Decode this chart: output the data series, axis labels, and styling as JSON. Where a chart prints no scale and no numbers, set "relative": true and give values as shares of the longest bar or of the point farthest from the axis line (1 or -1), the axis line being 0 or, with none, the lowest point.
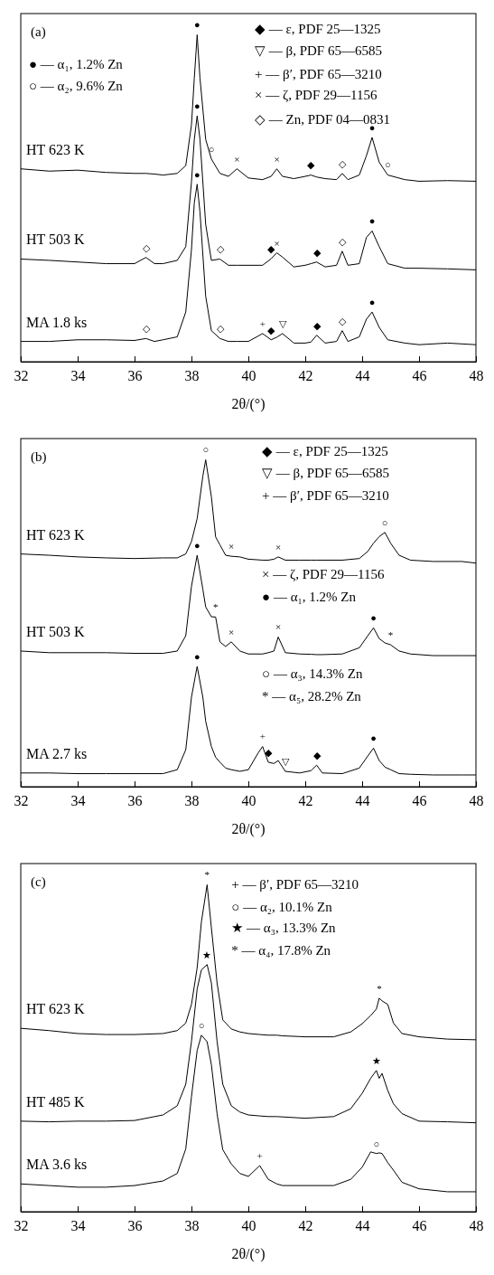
{
  "chart_data": [
    {
      "type": "line",
      "title": "(a)",
      "xlabel": "2θ/(°)",
      "relative": true,
      "xlim": [
        32,
        48
      ],
      "xticks": [
        32,
        34,
        36,
        38,
        40,
        42,
        44,
        46,
        48
      ],
      "x": [
        32,
        33,
        34,
        35,
        36,
        36.4,
        36.7,
        37,
        37.5,
        37.8,
        38,
        38.1,
        38.2,
        38.3,
        38.5,
        38.7,
        39,
        39.3,
        39.6,
        40,
        40.5,
        40.8,
        41,
        41.2,
        41.6,
        42,
        42.2,
        42.4,
        42.7,
        43.1,
        43.3,
        43.5,
        43.9,
        44.15,
        44.35,
        44.6,
        44.9,
        45.5,
        46,
        47,
        48
      ],
      "series": [
        {
          "name": "HT 623 K",
          "color": "#000000",
          "values": [
            0.59,
            0.583,
            0.586,
            0.579,
            0.576,
            0.576,
            0.574,
            0.571,
            0.576,
            0.6,
            0.724,
            0.867,
            1.0,
            0.867,
            0.68,
            0.62,
            0.576,
            0.567,
            0.59,
            0.562,
            0.557,
            0.567,
            0.59,
            0.567,
            0.56,
            0.567,
            0.571,
            0.565,
            0.56,
            0.557,
            0.576,
            0.557,
            0.571,
            0.63,
            0.686,
            0.61,
            0.571,
            0.557,
            0.552,
            0.554,
            0.552
          ]
        },
        {
          "name": "HT 503 K",
          "color": "#000000",
          "values": [
            0.314,
            0.31,
            0.305,
            0.3,
            0.3,
            0.319,
            0.3,
            0.3,
            0.31,
            0.352,
            0.55,
            0.68,
            0.752,
            0.68,
            0.42,
            0.31,
            0.314,
            0.295,
            0.295,
            0.295,
            0.295,
            0.315,
            0.333,
            0.32,
            0.29,
            0.295,
            0.3,
            0.305,
            0.29,
            0.295,
            0.338,
            0.295,
            0.3,
            0.38,
            0.4,
            0.352,
            0.3,
            0.286,
            0.286,
            0.284,
            0.281
          ]
        },
        {
          "name": "MA 1.8 ks",
          "color": "#000000",
          "values": [
            0.062,
            0.062,
            0.067,
            0.067,
            0.065,
            0.071,
            0.062,
            0.067,
            0.076,
            0.152,
            0.343,
            0.486,
            0.543,
            0.457,
            0.2,
            0.095,
            0.071,
            0.062,
            0.062,
            0.062,
            0.086,
            0.067,
            0.075,
            0.086,
            0.057,
            0.057,
            0.06,
            0.081,
            0.057,
            0.062,
            0.095,
            0.062,
            0.076,
            0.13,
            0.152,
            0.105,
            0.067,
            0.057,
            0.052,
            0.057,
            0.052
          ]
        }
      ],
      "annotations": [
        "● — α₁, 1.2% Zn",
        "○ — α₂, 9.6% Zn",
        "◆ — ε, PDF 25—1325",
        "▽ — β, PDF 65—6585",
        "+ — β′, PDF 65—3210",
        "× — ζ, PDF 29—1156",
        "◇ — Zn, PDF 04—0831",
        {
          "text": "●",
          "x": 38.2,
          "y": 1.0
        },
        {
          "text": "○",
          "x": 38.7,
          "y": 0.62
        },
        {
          "text": "×",
          "x": 39.6,
          "y": 0.59
        },
        {
          "text": "×",
          "x": 41,
          "y": 0.59
        },
        {
          "text": "◆",
          "x": 42.2,
          "y": 0.571
        },
        {
          "text": "◇",
          "x": 43.3,
          "y": 0.576
        },
        {
          "text": "●",
          "x": 44.35,
          "y": 0.686
        },
        {
          "text": "○",
          "x": 44.9,
          "y": 0.571
        },
        {
          "text": "◇",
          "x": 36.4,
          "y": 0.319
        },
        {
          "text": "●",
          "x": 38.2,
          "y": 0.752
        },
        {
          "text": "◇",
          "x": 39,
          "y": 0.314
        },
        {
          "text": "◆",
          "x": 40.8,
          "y": 0.315
        },
        {
          "text": "×",
          "x": 41,
          "y": 0.333
        },
        {
          "text": "◆",
          "x": 42.4,
          "y": 0.305
        },
        {
          "text": "◇",
          "x": 43.3,
          "y": 0.338
        },
        {
          "text": "●",
          "x": 44.35,
          "y": 0.4
        },
        {
          "text": "●",
          "x": 38.2,
          "y": 0.543
        },
        {
          "text": "◇",
          "x": 36.4,
          "y": 0.071
        },
        {
          "text": "◇",
          "x": 39,
          "y": 0.071
        },
        {
          "text": "+",
          "x": 40.5,
          "y": 0.086
        },
        {
          "text": "◆",
          "x": 40.8,
          "y": 0.067
        },
        {
          "text": "▽",
          "x": 41.2,
          "y": 0.086
        },
        {
          "text": "◆",
          "x": 42.4,
          "y": 0.081
        },
        {
          "text": "◇",
          "x": 43.3,
          "y": 0.095
        },
        {
          "text": "●",
          "x": 44.35,
          "y": 0.152
        }
      ]
    },
    {
      "type": "line",
      "title": "(b)",
      "xlabel": "2θ/(°)",
      "relative": true,
      "xlim": [
        32,
        48
      ],
      "xticks": [
        32,
        34,
        36,
        38,
        40,
        42,
        44,
        46,
        48
      ],
      "x": [
        32,
        33,
        34,
        35,
        36,
        37,
        37.5,
        37.8,
        38,
        38.2,
        38.4,
        38.5,
        38.7,
        38.85,
        39,
        39.2,
        39.4,
        39.7,
        40,
        40.35,
        40.5,
        40.7,
        40.9,
        41.05,
        41.3,
        41.8,
        42.2,
        42.4,
        42.6,
        43.3,
        43.9,
        44.2,
        44.4,
        44.6,
        44.8,
        45,
        45.3,
        45.7,
        46.5,
        47.5,
        48
      ],
      "series": [
        {
          "name": "HT 623 K",
          "color": "#000000",
          "values": [
            0.712,
            0.708,
            0.703,
            0.7,
            0.698,
            0.7,
            0.7,
            0.712,
            0.75,
            0.82,
            0.95,
            1.0,
            0.887,
            0.764,
            0.74,
            0.708,
            0.705,
            0.703,
            0.696,
            0.694,
            0.693,
            0.693,
            0.696,
            0.703,
            0.693,
            0.693,
            0.693,
            0.693,
            0.693,
            0.693,
            0.698,
            0.72,
            0.745,
            0.765,
            0.778,
            0.745,
            0.708,
            0.693,
            0.689,
            0.689,
            0.684
          ]
        },
        {
          "name": "HT 503 K",
          "color": "#000000",
          "values": [
            0.415,
            0.41,
            0.41,
            0.41,
            0.408,
            0.408,
            0.415,
            0.462,
            0.613,
            0.708,
            0.604,
            0.55,
            0.52,
            0.519,
            0.443,
            0.429,
            0.443,
            0.415,
            0.406,
            0.406,
            0.406,
            0.41,
            0.415,
            0.458,
            0.41,
            0.406,
            0.405,
            0.404,
            0.404,
            0.406,
            0.425,
            0.462,
            0.486,
            0.453,
            0.44,
            0.434,
            0.415,
            0.406,
            0.401,
            0.401,
            0.401
          ]
        },
        {
          "name": "MA 2.7 ks",
          "color": "#000000",
          "values": [
            0.042,
            0.042,
            0.04,
            0.04,
            0.04,
            0.04,
            0.052,
            0.113,
            0.274,
            0.368,
            0.274,
            0.2,
            0.123,
            0.09,
            0.075,
            0.057,
            0.052,
            0.047,
            0.052,
            0.104,
            0.123,
            0.075,
            0.071,
            0.08,
            0.047,
            0.042,
            0.049,
            0.066,
            0.042,
            0.04,
            0.057,
            0.094,
            0.118,
            0.08,
            0.06,
            0.052,
            0.04,
            0.038,
            0.036,
            0.036,
            0.036
          ]
        }
      ],
      "annotations": [
        "◆ — ε, PDF 25—1325",
        "▽ — β, PDF 65—6585",
        "+ — β′, PDF 65—3210",
        "× — ζ, PDF 29—1156",
        "● — α₁, 1.2% Zn",
        "○ — α₃, 14.3% Zn",
        "* — α₅, 28.2% Zn",
        {
          "text": "○",
          "x": 38.5,
          "y": 1.0
        },
        {
          "text": "×",
          "x": 39.4,
          "y": 0.705
        },
        {
          "text": "×",
          "x": 41.05,
          "y": 0.703
        },
        {
          "text": "○",
          "x": 44.8,
          "y": 0.778
        },
        {
          "text": "●",
          "x": 38.2,
          "y": 0.708
        },
        {
          "text": "*",
          "x": 38.85,
          "y": 0.519
        },
        {
          "text": "×",
          "x": 39.4,
          "y": 0.443
        },
        {
          "text": "×",
          "x": 41.05,
          "y": 0.458
        },
        {
          "text": "●",
          "x": 44.4,
          "y": 0.486
        },
        {
          "text": "*",
          "x": 45,
          "y": 0.434
        },
        {
          "text": "●",
          "x": 38.2,
          "y": 0.368
        },
        {
          "text": "+",
          "x": 40.5,
          "y": 0.123
        },
        {
          "text": "◆",
          "x": 40.7,
          "y": 0.075
        },
        {
          "text": "▽",
          "x": 41.3,
          "y": 0.047
        },
        {
          "text": "◆",
          "x": 42.4,
          "y": 0.066
        },
        {
          "text": "●",
          "x": 44.4,
          "y": 0.118
        }
      ]
    },
    {
      "type": "line",
      "title": "(c)",
      "xlabel": "2θ/(°)",
      "relative": true,
      "xlim": [
        32,
        48
      ],
      "xticks": [
        32,
        34,
        36,
        38,
        40,
        42,
        44,
        46,
        48
      ],
      "x": [
        32,
        33,
        34,
        35,
        36,
        37,
        37.5,
        37.8,
        38,
        38.2,
        38.35,
        38.55,
        38.7,
        38.9,
        39.1,
        39.4,
        39.7,
        40,
        40.4,
        40.7,
        41,
        41.2,
        42,
        43,
        43.6,
        44,
        44.3,
        44.5,
        44.6,
        44.7,
        44.9,
        45.1,
        45.4,
        46,
        47,
        48
      ],
      "series": [
        {
          "name": "HT 623 K",
          "color": "#000000",
          "values": [
            0.561,
            0.554,
            0.545,
            0.542,
            0.542,
            0.545,
            0.554,
            0.577,
            0.634,
            0.746,
            0.887,
            1.0,
            0.869,
            0.7,
            0.587,
            0.559,
            0.55,
            0.545,
            0.542,
            0.54,
            0.54,
            0.538,
            0.535,
            0.535,
            0.55,
            0.575,
            0.6,
            0.62,
            0.653,
            0.645,
            0.634,
            0.577,
            0.545,
            0.535,
            0.528,
            0.526
          ]
        },
        {
          "name": "HT 485 K",
          "color": "#000000",
          "values": [
            0.277,
            0.275,
            0.277,
            0.277,
            0.279,
            0.296,
            0.324,
            0.39,
            0.521,
            0.681,
            0.74,
            0.756,
            0.7,
            0.521,
            0.39,
            0.324,
            0.305,
            0.296,
            0.293,
            0.291,
            0.291,
            0.29,
            0.286,
            0.291,
            0.315,
            0.362,
            0.408,
            0.432,
            0.408,
            0.423,
            0.371,
            0.33,
            0.3,
            0.277,
            0.275,
            0.272
          ]
        },
        {
          "name": "MA 3.6 ks",
          "color": "#000000",
          "values": [
            0.085,
            0.08,
            0.075,
            0.075,
            0.08,
            0.094,
            0.117,
            0.192,
            0.352,
            0.493,
            0.54,
            0.52,
            0.45,
            0.3,
            0.19,
            0.146,
            0.117,
            0.108,
            0.141,
            0.099,
            0.085,
            0.08,
            0.08,
            0.08,
            0.099,
            0.136,
            0.183,
            0.178,
            0.18,
            0.178,
            0.15,
            0.127,
            0.09,
            0.07,
            0.061,
            0.061
          ]
        }
      ],
      "annotations": [
        "+ — β′, PDF 65—3210",
        "○ — α₂, 10.1% Zn",
        "★ — α₃, 13.3% Zn",
        "* — α₄, 17.8% Zn",
        {
          "text": "*",
          "x": 38.55,
          "y": 1.0
        },
        {
          "text": "*",
          "x": 44.6,
          "y": 0.653
        },
        {
          "text": "★",
          "x": 38.55,
          "y": 0.756
        },
        {
          "text": "★",
          "x": 44.5,
          "y": 0.432
        },
        {
          "text": "○",
          "x": 38.35,
          "y": 0.54
        },
        {
          "text": "+",
          "x": 40.4,
          "y": 0.141
        },
        {
          "text": "○",
          "x": 44.5,
          "y": 0.178
        }
      ]
    }
  ]
}
